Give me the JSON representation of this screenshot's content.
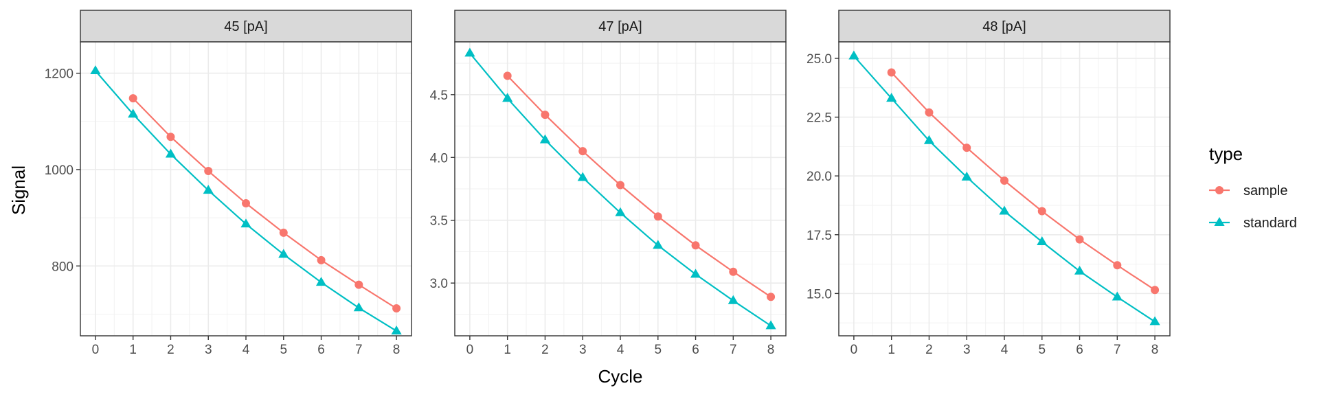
{
  "chart_data": {
    "type": "line",
    "xlabel": "Cycle",
    "ylabel": "Signal",
    "x_ticks": [
      0,
      1,
      2,
      3,
      4,
      5,
      6,
      7,
      8
    ],
    "legend": {
      "title": "type",
      "placement": "right",
      "entries": [
        {
          "label": "sample",
          "color": "#F8766D",
          "marker": "circle"
        },
        {
          "label": "standard",
          "color": "#00BFC4",
          "marker": "triangle"
        }
      ]
    },
    "grid": true,
    "panels": [
      {
        "title": "45 [pA]",
        "ylim": [
          655,
          1265
        ],
        "y_ticks": [
          800,
          1000,
          1200
        ],
        "y_tick_labels": [
          "800",
          "1000",
          "1200"
        ],
        "series": [
          {
            "name": "sample",
            "x": [
              1,
              2,
              3,
              4,
              5,
              6,
              7,
              8
            ],
            "y": [
              1148,
              1068,
              997,
              930,
              869,
              812,
              761,
              712
            ]
          },
          {
            "name": "standard",
            "x": [
              0,
              1,
              2,
              3,
              4,
              5,
              6,
              7,
              8
            ],
            "y": [
              1205,
              1115,
              1032,
              957,
              887,
              824,
              766,
              713,
              665
            ]
          }
        ]
      },
      {
        "title": "47 [pA]",
        "ylim": [
          2.58,
          4.92
        ],
        "y_ticks": [
          3.0,
          3.5,
          4.0,
          4.5
        ],
        "y_tick_labels": [
          "3.0",
          "3.5",
          "4.0",
          "4.5"
        ],
        "series": [
          {
            "name": "sample",
            "x": [
              1,
              2,
              3,
              4,
              5,
              6,
              7,
              8
            ],
            "y": [
              4.65,
              4.34,
              4.05,
              3.78,
              3.53,
              3.3,
              3.09,
              2.89
            ]
          },
          {
            "name": "standard",
            "x": [
              0,
              1,
              2,
              3,
              4,
              5,
              6,
              7,
              8
            ],
            "y": [
              4.83,
              4.47,
              4.14,
              3.84,
              3.56,
              3.3,
              3.07,
              2.86,
              2.66
            ]
          }
        ]
      },
      {
        "title": "48 [pA]",
        "ylim": [
          13.2,
          25.7
        ],
        "y_ticks": [
          15.0,
          17.5,
          20.0,
          22.5,
          25.0
        ],
        "y_tick_labels": [
          "15.0",
          "17.5",
          "20.0",
          "22.5",
          "25.0"
        ],
        "series": [
          {
            "name": "sample",
            "x": [
              1,
              2,
              3,
              4,
              5,
              6,
              7,
              8
            ],
            "y": [
              24.4,
              22.7,
              21.2,
              19.8,
              18.5,
              17.3,
              16.2,
              15.15
            ]
          },
          {
            "name": "standard",
            "x": [
              0,
              1,
              2,
              3,
              4,
              5,
              6,
              7,
              8
            ],
            "y": [
              25.1,
              23.3,
              21.5,
              19.95,
              18.5,
              17.2,
              15.95,
              14.85,
              13.8
            ]
          }
        ]
      }
    ]
  }
}
